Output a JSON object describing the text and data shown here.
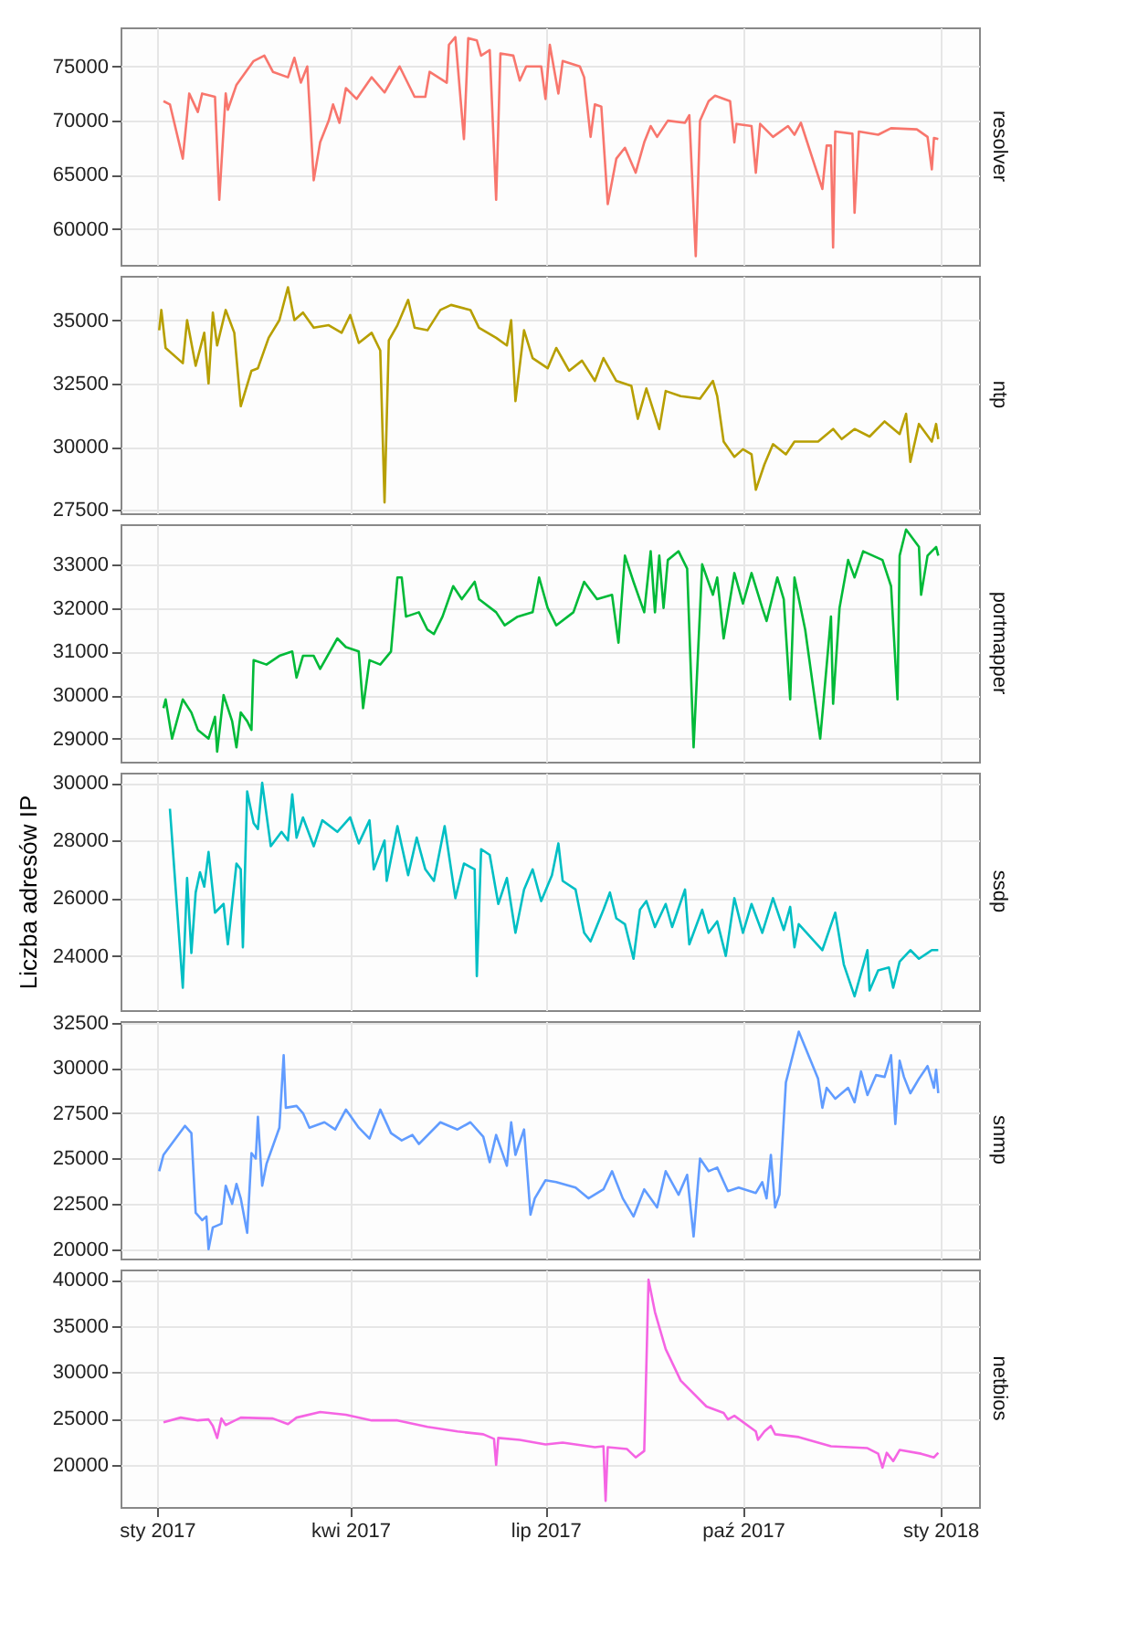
{
  "chart_data": [
    {
      "type": "line",
      "xlim": [
        "2016-12-15",
        "2018-01-19"
      ],
      "ylim": [
        56700,
        78600
      ],
      "yticks": [
        60000,
        65000,
        70000,
        75000
      ],
      "grid": true,
      "tick_labels": "y",
      "x": [
        "2017-01-04",
        "2017-01-07",
        "2017-01-13",
        "2017-01-16",
        "2017-01-20",
        "2017-01-22",
        "2017-01-28",
        "2017-01-30",
        "2017-02-02",
        "2017-02-03",
        "2017-02-07",
        "2017-02-15",
        "2017-02-20",
        "2017-02-24",
        "2017-03-03",
        "2017-03-06",
        "2017-03-09",
        "2017-03-12",
        "2017-03-15",
        "2017-03-18",
        "2017-03-22",
        "2017-03-24",
        "2017-03-27",
        "2017-03-30",
        "2017-04-04",
        "2017-04-11",
        "2017-04-17",
        "2017-04-24",
        "2017-05-01",
        "2017-05-06",
        "2017-05-08",
        "2017-05-16",
        "2017-05-17",
        "2017-05-20",
        "2017-05-24",
        "2017-05-26",
        "2017-05-30",
        "2017-06-01",
        "2017-06-05",
        "2017-06-08",
        "2017-06-10",
        "2017-06-16",
        "2017-06-19",
        "2017-06-22",
        "2017-06-29",
        "2017-07-01",
        "2017-07-03",
        "2017-07-07",
        "2017-07-09",
        "2017-07-17",
        "2017-07-19",
        "2017-07-22",
        "2017-07-24",
        "2017-07-27",
        "2017-07-30",
        "2017-08-03",
        "2017-08-07",
        "2017-08-12",
        "2017-08-16",
        "2017-08-19",
        "2017-08-22",
        "2017-08-27",
        "2017-09-04",
        "2017-09-06",
        "2017-09-09",
        "2017-09-11",
        "2017-09-15",
        "2017-09-18",
        "2017-09-25",
        "2017-09-27",
        "2017-09-28",
        "2017-10-05",
        "2017-10-07",
        "2017-10-09",
        "2017-10-15",
        "2017-10-22",
        "2017-10-25",
        "2017-10-28",
        "2017-11-07",
        "2017-11-09",
        "2017-11-11",
        "2017-11-12",
        "2017-11-13",
        "2017-11-21",
        "2017-11-22",
        "2017-11-24",
        "2017-12-03",
        "2017-12-09",
        "2017-12-21",
        "2017-12-26",
        "2017-12-28",
        "2017-12-29",
        "2017-12-31"
      ],
      "series": [
        {
          "name": "resolver",
          "color": "#f8766d",
          "values": [
            71800,
            71500,
            66500,
            72500,
            70800,
            72500,
            72200,
            62700,
            72500,
            71000,
            73300,
            75500,
            76000,
            74500,
            74000,
            75800,
            73500,
            75000,
            64500,
            68000,
            70000,
            71500,
            69800,
            73000,
            72000,
            74000,
            72600,
            75000,
            72200,
            72200,
            74500,
            73500,
            77000,
            77700,
            68300,
            77600,
            77400,
            76000,
            76500,
            62700,
            76200,
            76000,
            73700,
            75000,
            75000,
            72000,
            77000,
            72500,
            75500,
            75000,
            74000,
            68500,
            71500,
            71300,
            62300,
            66500,
            67500,
            65200,
            68000,
            69500,
            68500,
            70000,
            69800,
            70500,
            57500,
            70000,
            71800,
            72300,
            71800,
            68000,
            69700,
            69500,
            65200,
            69700,
            68500,
            69500,
            68700,
            69800,
            63700,
            67700,
            67700,
            58300,
            69000,
            68800,
            61500,
            69000,
            68700,
            69300,
            69200,
            68500,
            65500,
            68400,
            68300
          ]
        }
      ]
    },
    {
      "type": "line",
      "xlim": [
        "2016-12-15",
        "2018-01-19"
      ],
      "ylim": [
        27370,
        36750
      ],
      "yticks": [
        27500,
        30000,
        32500,
        35000
      ],
      "grid": true,
      "tick_labels": "y",
      "x": [
        "2017-01-02",
        "2017-01-03",
        "2017-01-05",
        "2017-01-13",
        "2017-01-15",
        "2017-01-19",
        "2017-01-23",
        "2017-01-25",
        "2017-01-27",
        "2017-01-29",
        "2017-02-02",
        "2017-02-06",
        "2017-02-09",
        "2017-02-14",
        "2017-02-17",
        "2017-02-22",
        "2017-02-27",
        "2017-03-03",
        "2017-03-06",
        "2017-03-10",
        "2017-03-15",
        "2017-03-22",
        "2017-03-28",
        "2017-04-01",
        "2017-04-05",
        "2017-04-11",
        "2017-04-15",
        "2017-04-17",
        "2017-04-19",
        "2017-04-23",
        "2017-04-28",
        "2017-05-01",
        "2017-05-07",
        "2017-05-13",
        "2017-05-18",
        "2017-05-27",
        "2017-05-31",
        "2017-06-08",
        "2017-06-13",
        "2017-06-15",
        "2017-06-17",
        "2017-06-21",
        "2017-06-25",
        "2017-07-02",
        "2017-07-06",
        "2017-07-12",
        "2017-07-18",
        "2017-07-24",
        "2017-07-28",
        "2017-08-03",
        "2017-08-10",
        "2017-08-13",
        "2017-08-17",
        "2017-08-23",
        "2017-08-26",
        "2017-09-02",
        "2017-09-11",
        "2017-09-17",
        "2017-09-19",
        "2017-09-22",
        "2017-09-27",
        "2017-10-01",
        "2017-10-05",
        "2017-10-07",
        "2017-10-11",
        "2017-10-15",
        "2017-10-21",
        "2017-10-25",
        "2017-11-05",
        "2017-11-12",
        "2017-11-16",
        "2017-11-22",
        "2017-11-29",
        "2017-12-06",
        "2017-12-13",
        "2017-12-16",
        "2017-12-18",
        "2017-12-22",
        "2017-12-28",
        "2017-12-30",
        "2017-12-31"
      ],
      "series": [
        {
          "name": "ntp",
          "color": "#b79f00",
          "values": [
            34600,
            35400,
            33900,
            33300,
            35000,
            33200,
            34500,
            32500,
            35300,
            34000,
            35400,
            34500,
            31600,
            33000,
            33100,
            34300,
            35000,
            36300,
            35000,
            35300,
            34700,
            34800,
            34500,
            35200,
            34100,
            34500,
            33800,
            27800,
            34200,
            34800,
            35800,
            34700,
            34600,
            35400,
            35600,
            35400,
            34700,
            34300,
            34000,
            35000,
            31800,
            34600,
            33500,
            33100,
            33900,
            33000,
            33400,
            32600,
            33500,
            32600,
            32400,
            31100,
            32300,
            30700,
            32200,
            32000,
            31900,
            32600,
            32000,
            30200,
            29600,
            29900,
            29700,
            28300,
            29300,
            30100,
            29700,
            30200,
            30200,
            30700,
            30300,
            30700,
            30400,
            31000,
            30500,
            31300,
            29400,
            30900,
            30200,
            30900,
            30300
          ]
        }
      ]
    },
    {
      "type": "line",
      "xlim": [
        "2016-12-15",
        "2018-01-19"
      ],
      "ylim": [
        28470,
        33920
      ],
      "yticks": [
        29000,
        30000,
        31000,
        32000,
        33000
      ],
      "grid": true,
      "tick_labels": "y",
      "x": [
        "2017-01-04",
        "2017-01-05",
        "2017-01-08",
        "2017-01-13",
        "2017-01-17",
        "2017-01-20",
        "2017-01-25",
        "2017-01-28",
        "2017-01-29",
        "2017-02-01",
        "2017-02-05",
        "2017-02-07",
        "2017-02-09",
        "2017-02-12",
        "2017-02-14",
        "2017-02-15",
        "2017-02-21",
        "2017-02-27",
        "2017-03-05",
        "2017-03-07",
        "2017-03-10",
        "2017-03-15",
        "2017-03-18",
        "2017-03-26",
        "2017-03-30",
        "2017-04-05",
        "2017-04-07",
        "2017-04-10",
        "2017-04-15",
        "2017-04-20",
        "2017-04-23",
        "2017-04-25",
        "2017-04-27",
        "2017-05-03",
        "2017-05-07",
        "2017-05-10",
        "2017-05-14",
        "2017-05-19",
        "2017-05-23",
        "2017-05-29",
        "2017-05-31",
        "2017-06-08",
        "2017-06-12",
        "2017-06-18",
        "2017-06-25",
        "2017-06-28",
        "2017-07-02",
        "2017-07-06",
        "2017-07-14",
        "2017-07-19",
        "2017-07-25",
        "2017-08-01",
        "2017-08-04",
        "2017-08-07",
        "2017-08-11",
        "2017-08-16",
        "2017-08-19",
        "2017-08-21",
        "2017-08-23",
        "2017-08-25",
        "2017-08-27",
        "2017-09-01",
        "2017-09-05",
        "2017-09-08",
        "2017-09-12",
        "2017-09-17",
        "2017-09-19",
        "2017-09-22",
        "2017-09-27",
        "2017-10-01",
        "2017-10-05",
        "2017-10-10",
        "2017-10-12",
        "2017-10-17",
        "2017-10-20",
        "2017-10-23",
        "2017-10-25",
        "2017-10-30",
        "2017-11-06",
        "2017-11-11",
        "2017-11-12",
        "2017-11-15",
        "2017-11-19",
        "2017-11-22",
        "2017-11-26",
        "2017-12-05",
        "2017-12-09",
        "2017-12-12",
        "2017-12-13",
        "2017-12-16",
        "2017-12-22",
        "2017-12-23",
        "2017-12-26",
        "2017-12-30",
        "2017-12-31"
      ],
      "series": [
        {
          "name": "portmapper",
          "color": "#00ba38",
          "values": [
            29700,
            29900,
            29000,
            29900,
            29600,
            29200,
            29000,
            29500,
            28700,
            30000,
            29400,
            28800,
            29600,
            29400,
            29200,
            30800,
            30700,
            30900,
            31000,
            30400,
            30900,
            30900,
            30600,
            31300,
            31100,
            31000,
            29700,
            30800,
            30700,
            31000,
            32700,
            32700,
            31800,
            31900,
            31500,
            31400,
            31800,
            32500,
            32200,
            32600,
            32200,
            31900,
            31600,
            31800,
            31900,
            32700,
            32000,
            31600,
            31900,
            32600,
            32200,
            32300,
            31200,
            33200,
            32600,
            31900,
            33300,
            31900,
            33200,
            32000,
            33100,
            33300,
            32900,
            28800,
            33000,
            32300,
            32700,
            31300,
            32800,
            32100,
            32800,
            32000,
            31700,
            32700,
            32200,
            29900,
            32700,
            31500,
            29000,
            31800,
            29800,
            32000,
            33100,
            32700,
            33300,
            33100,
            32500,
            29900,
            33200,
            33800,
            33400,
            32300,
            33200,
            33400,
            33200
          ]
        }
      ]
    },
    {
      "type": "line",
      "xlim": [
        "2016-12-15",
        "2018-01-19"
      ],
      "ylim": [
        22120,
        30350
      ],
      "yticks": [
        24000,
        26000,
        28000,
        30000
      ],
      "grid": true,
      "tick_labels": "y",
      "ylabel": "Liczba adresów IP",
      "x": [
        "2017-01-07",
        "2017-01-13",
        "2017-01-15",
        "2017-01-17",
        "2017-01-19",
        "2017-01-21",
        "2017-01-23",
        "2017-01-25",
        "2017-01-28",
        "2017-02-01",
        "2017-02-03",
        "2017-02-07",
        "2017-02-09",
        "2017-02-10",
        "2017-02-12",
        "2017-02-15",
        "2017-02-17",
        "2017-02-19",
        "2017-02-23",
        "2017-02-28",
        "2017-03-03",
        "2017-03-05",
        "2017-03-07",
        "2017-03-10",
        "2017-03-15",
        "2017-03-19",
        "2017-03-26",
        "2017-04-01",
        "2017-04-05",
        "2017-04-10",
        "2017-04-12",
        "2017-04-17",
        "2017-04-18",
        "2017-04-23",
        "2017-04-28",
        "2017-05-02",
        "2017-05-06",
        "2017-05-10",
        "2017-05-15",
        "2017-05-20",
        "2017-05-24",
        "2017-05-29",
        "2017-05-30",
        "2017-06-01",
        "2017-06-05",
        "2017-06-09",
        "2017-06-13",
        "2017-06-17",
        "2017-06-21",
        "2017-06-25",
        "2017-06-29",
        "2017-07-04",
        "2017-07-07",
        "2017-07-09",
        "2017-07-15",
        "2017-07-19",
        "2017-07-22",
        "2017-07-28",
        "2017-07-31",
        "2017-08-03",
        "2017-08-07",
        "2017-08-11",
        "2017-08-14",
        "2017-08-17",
        "2017-08-21",
        "2017-08-26",
        "2017-08-29",
        "2017-09-04",
        "2017-09-06",
        "2017-09-12",
        "2017-09-15",
        "2017-09-19",
        "2017-09-23",
        "2017-09-27",
        "2017-10-01",
        "2017-10-05",
        "2017-10-10",
        "2017-10-15",
        "2017-10-20",
        "2017-10-23",
        "2017-10-25",
        "2017-10-27",
        "2017-11-07",
        "2017-11-13",
        "2017-11-17",
        "2017-11-22",
        "2017-11-28",
        "2017-11-29",
        "2017-12-03",
        "2017-12-08",
        "2017-12-10",
        "2017-12-13",
        "2017-12-18",
        "2017-12-22",
        "2017-12-28",
        "2017-12-31"
      ],
      "series": [
        {
          "name": "ssdp",
          "color": "#00bfc4",
          "values": [
            29100,
            22900,
            26700,
            24100,
            26200,
            26900,
            26400,
            27600,
            25500,
            25800,
            24400,
            27200,
            27000,
            24300,
            29700,
            28600,
            28400,
            30000,
            27800,
            28300,
            28000,
            29600,
            28100,
            28800,
            27800,
            28700,
            28300,
            28800,
            27900,
            28700,
            27000,
            28000,
            26600,
            28500,
            26800,
            28100,
            27000,
            26600,
            28500,
            26000,
            27200,
            27000,
            23300,
            27700,
            27500,
            25800,
            26700,
            24800,
            26300,
            27000,
            25900,
            26800,
            27900,
            26600,
            26300,
            24800,
            24500,
            25600,
            26200,
            25300,
            25100,
            23900,
            25600,
            25900,
            25000,
            25800,
            25000,
            26300,
            24400,
            25600,
            24800,
            25200,
            24000,
            26000,
            24800,
            25800,
            24800,
            26000,
            24900,
            25700,
            24300,
            25100,
            24200,
            25500,
            23700,
            22600,
            24200,
            22800,
            23500,
            23600,
            22900,
            23800,
            24200,
            23900,
            24200,
            24200
          ]
        }
      ]
    },
    {
      "type": "line",
      "xlim": [
        "2016-12-15",
        "2018-01-19"
      ],
      "ylim": [
        19480,
        32580
      ],
      "yticks": [
        20000,
        22500,
        25000,
        27500,
        30000,
        32500
      ],
      "grid": true,
      "tick_labels": "y",
      "x": [
        "2017-01-02",
        "2017-01-04",
        "2017-01-14",
        "2017-01-17",
        "2017-01-19",
        "2017-01-22",
        "2017-01-24",
        "2017-01-25",
        "2017-01-27",
        "2017-01-31",
        "2017-02-02",
        "2017-02-05",
        "2017-02-07",
        "2017-02-09",
        "2017-02-12",
        "2017-02-14",
        "2017-02-16",
        "2017-02-17",
        "2017-02-19",
        "2017-02-21",
        "2017-02-27",
        "2017-03-01",
        "2017-03-02",
        "2017-03-07",
        "2017-03-10",
        "2017-03-13",
        "2017-03-20",
        "2017-03-25",
        "2017-03-30",
        "2017-04-05",
        "2017-04-10",
        "2017-04-15",
        "2017-04-20",
        "2017-04-25",
        "2017-04-30",
        "2017-05-03",
        "2017-05-13",
        "2017-05-21",
        "2017-05-27",
        "2017-06-02",
        "2017-06-05",
        "2017-06-08",
        "2017-06-13",
        "2017-06-15",
        "2017-06-17",
        "2017-06-21",
        "2017-06-23",
        "2017-06-24",
        "2017-06-26",
        "2017-07-01",
        "2017-07-06",
        "2017-07-15",
        "2017-07-21",
        "2017-07-28",
        "2017-08-01",
        "2017-08-06",
        "2017-08-11",
        "2017-08-16",
        "2017-08-22",
        "2017-08-26",
        "2017-09-01",
        "2017-09-05",
        "2017-09-08",
        "2017-09-11",
        "2017-09-15",
        "2017-09-19",
        "2017-09-24",
        "2017-09-29",
        "2017-10-07",
        "2017-10-10",
        "2017-10-12",
        "2017-10-14",
        "2017-10-16",
        "2017-10-18",
        "2017-10-21",
        "2017-10-27",
        "2017-11-05",
        "2017-11-07",
        "2017-11-09",
        "2017-11-13",
        "2017-11-19",
        "2017-11-22",
        "2017-11-25",
        "2017-11-28",
        "2017-12-02",
        "2017-12-06",
        "2017-12-09",
        "2017-12-11",
        "2017-12-13",
        "2017-12-15",
        "2017-12-18",
        "2017-12-22",
        "2017-12-26",
        "2017-12-29",
        "2017-12-30",
        "2017-12-31"
      ],
      "series": [
        {
          "name": "snmp",
          "color": "#619cff",
          "values": [
            24300,
            25200,
            26800,
            26400,
            22000,
            21600,
            21800,
            20000,
            21200,
            21400,
            23500,
            22500,
            23600,
            22800,
            20900,
            25300,
            25000,
            27300,
            23500,
            24700,
            26700,
            30700,
            27800,
            27900,
            27500,
            26700,
            27000,
            26600,
            27700,
            26700,
            26100,
            27700,
            26400,
            26000,
            26300,
            25800,
            27000,
            26600,
            27000,
            26200,
            24800,
            26300,
            24600,
            27000,
            25200,
            26600,
            23500,
            21900,
            22800,
            23800,
            23700,
            23400,
            22800,
            23300,
            24300,
            22800,
            21800,
            23300,
            22300,
            24300,
            23000,
            24100,
            20700,
            25000,
            24300,
            24500,
            23200,
            23400,
            23100,
            23700,
            22800,
            25200,
            22300,
            23000,
            29200,
            32000,
            29400,
            27800,
            28900,
            28300,
            28900,
            28100,
            29800,
            28500,
            29600,
            29500,
            30700,
            26900,
            30400,
            29500,
            28600,
            29400,
            30100,
            28900,
            29900,
            28600
          ]
        }
      ]
    },
    {
      "type": "line",
      "xlim": [
        "2016-12-15",
        "2018-01-19"
      ],
      "ylim": [
        15440,
        41100
      ],
      "yticks": [
        20000,
        25000,
        30000,
        35000,
        40000
      ],
      "grid": true,
      "xticks": [
        {
          "value": "2017-01-01",
          "label": "sty 2017"
        },
        {
          "value": "2017-04-01",
          "label": "kwi 2017"
        },
        {
          "value": "2017-07-01",
          "label": "lip 2017"
        },
        {
          "value": "2017-10-01",
          "label": "paź 2017"
        },
        {
          "value": "2018-01-01",
          "label": "sty 2018"
        }
      ],
      "x": [
        "2017-01-04",
        "2017-01-12",
        "2017-01-20",
        "2017-01-25",
        "2017-01-27",
        "2017-01-29",
        "2017-01-31",
        "2017-02-02",
        "2017-02-09",
        "2017-02-24",
        "2017-03-03",
        "2017-03-07",
        "2017-03-18",
        "2017-03-30",
        "2017-04-11",
        "2017-04-23",
        "2017-05-07",
        "2017-05-21",
        "2017-06-02",
        "2017-06-07",
        "2017-06-08",
        "2017-06-09",
        "2017-06-19",
        "2017-07-01",
        "2017-07-09",
        "2017-07-24",
        "2017-07-28",
        "2017-07-29",
        "2017-07-30",
        "2017-08-08",
        "2017-08-12",
        "2017-08-16",
        "2017-08-18",
        "2017-08-21",
        "2017-08-26",
        "2017-09-02",
        "2017-09-14",
        "2017-09-22",
        "2017-09-24",
        "2017-09-27",
        "2017-10-07",
        "2017-10-08",
        "2017-10-11",
        "2017-10-14",
        "2017-10-16",
        "2017-10-27",
        "2017-11-11",
        "2017-11-28",
        "2017-12-03",
        "2017-12-05",
        "2017-12-07",
        "2017-12-10",
        "2017-12-13",
        "2017-12-23",
        "2017-12-29",
        "2017-12-31"
      ],
      "series": [
        {
          "name": "netbios",
          "color": "#f564e3",
          "values": [
            24600,
            25100,
            24800,
            24900,
            24200,
            22900,
            25000,
            24300,
            25100,
            25000,
            24400,
            25100,
            25700,
            25400,
            24800,
            24800,
            24100,
            23600,
            23300,
            22800,
            20000,
            22900,
            22700,
            22200,
            22400,
            21900,
            22000,
            16100,
            21900,
            21700,
            20800,
            21500,
            40000,
            36500,
            32500,
            29100,
            26300,
            25600,
            24900,
            25300,
            23600,
            22700,
            23600,
            24200,
            23300,
            23000,
            22000,
            21800,
            21200,
            19700,
            21300,
            20400,
            21600,
            21200,
            20800,
            21300
          ]
        }
      ]
    }
  ]
}
